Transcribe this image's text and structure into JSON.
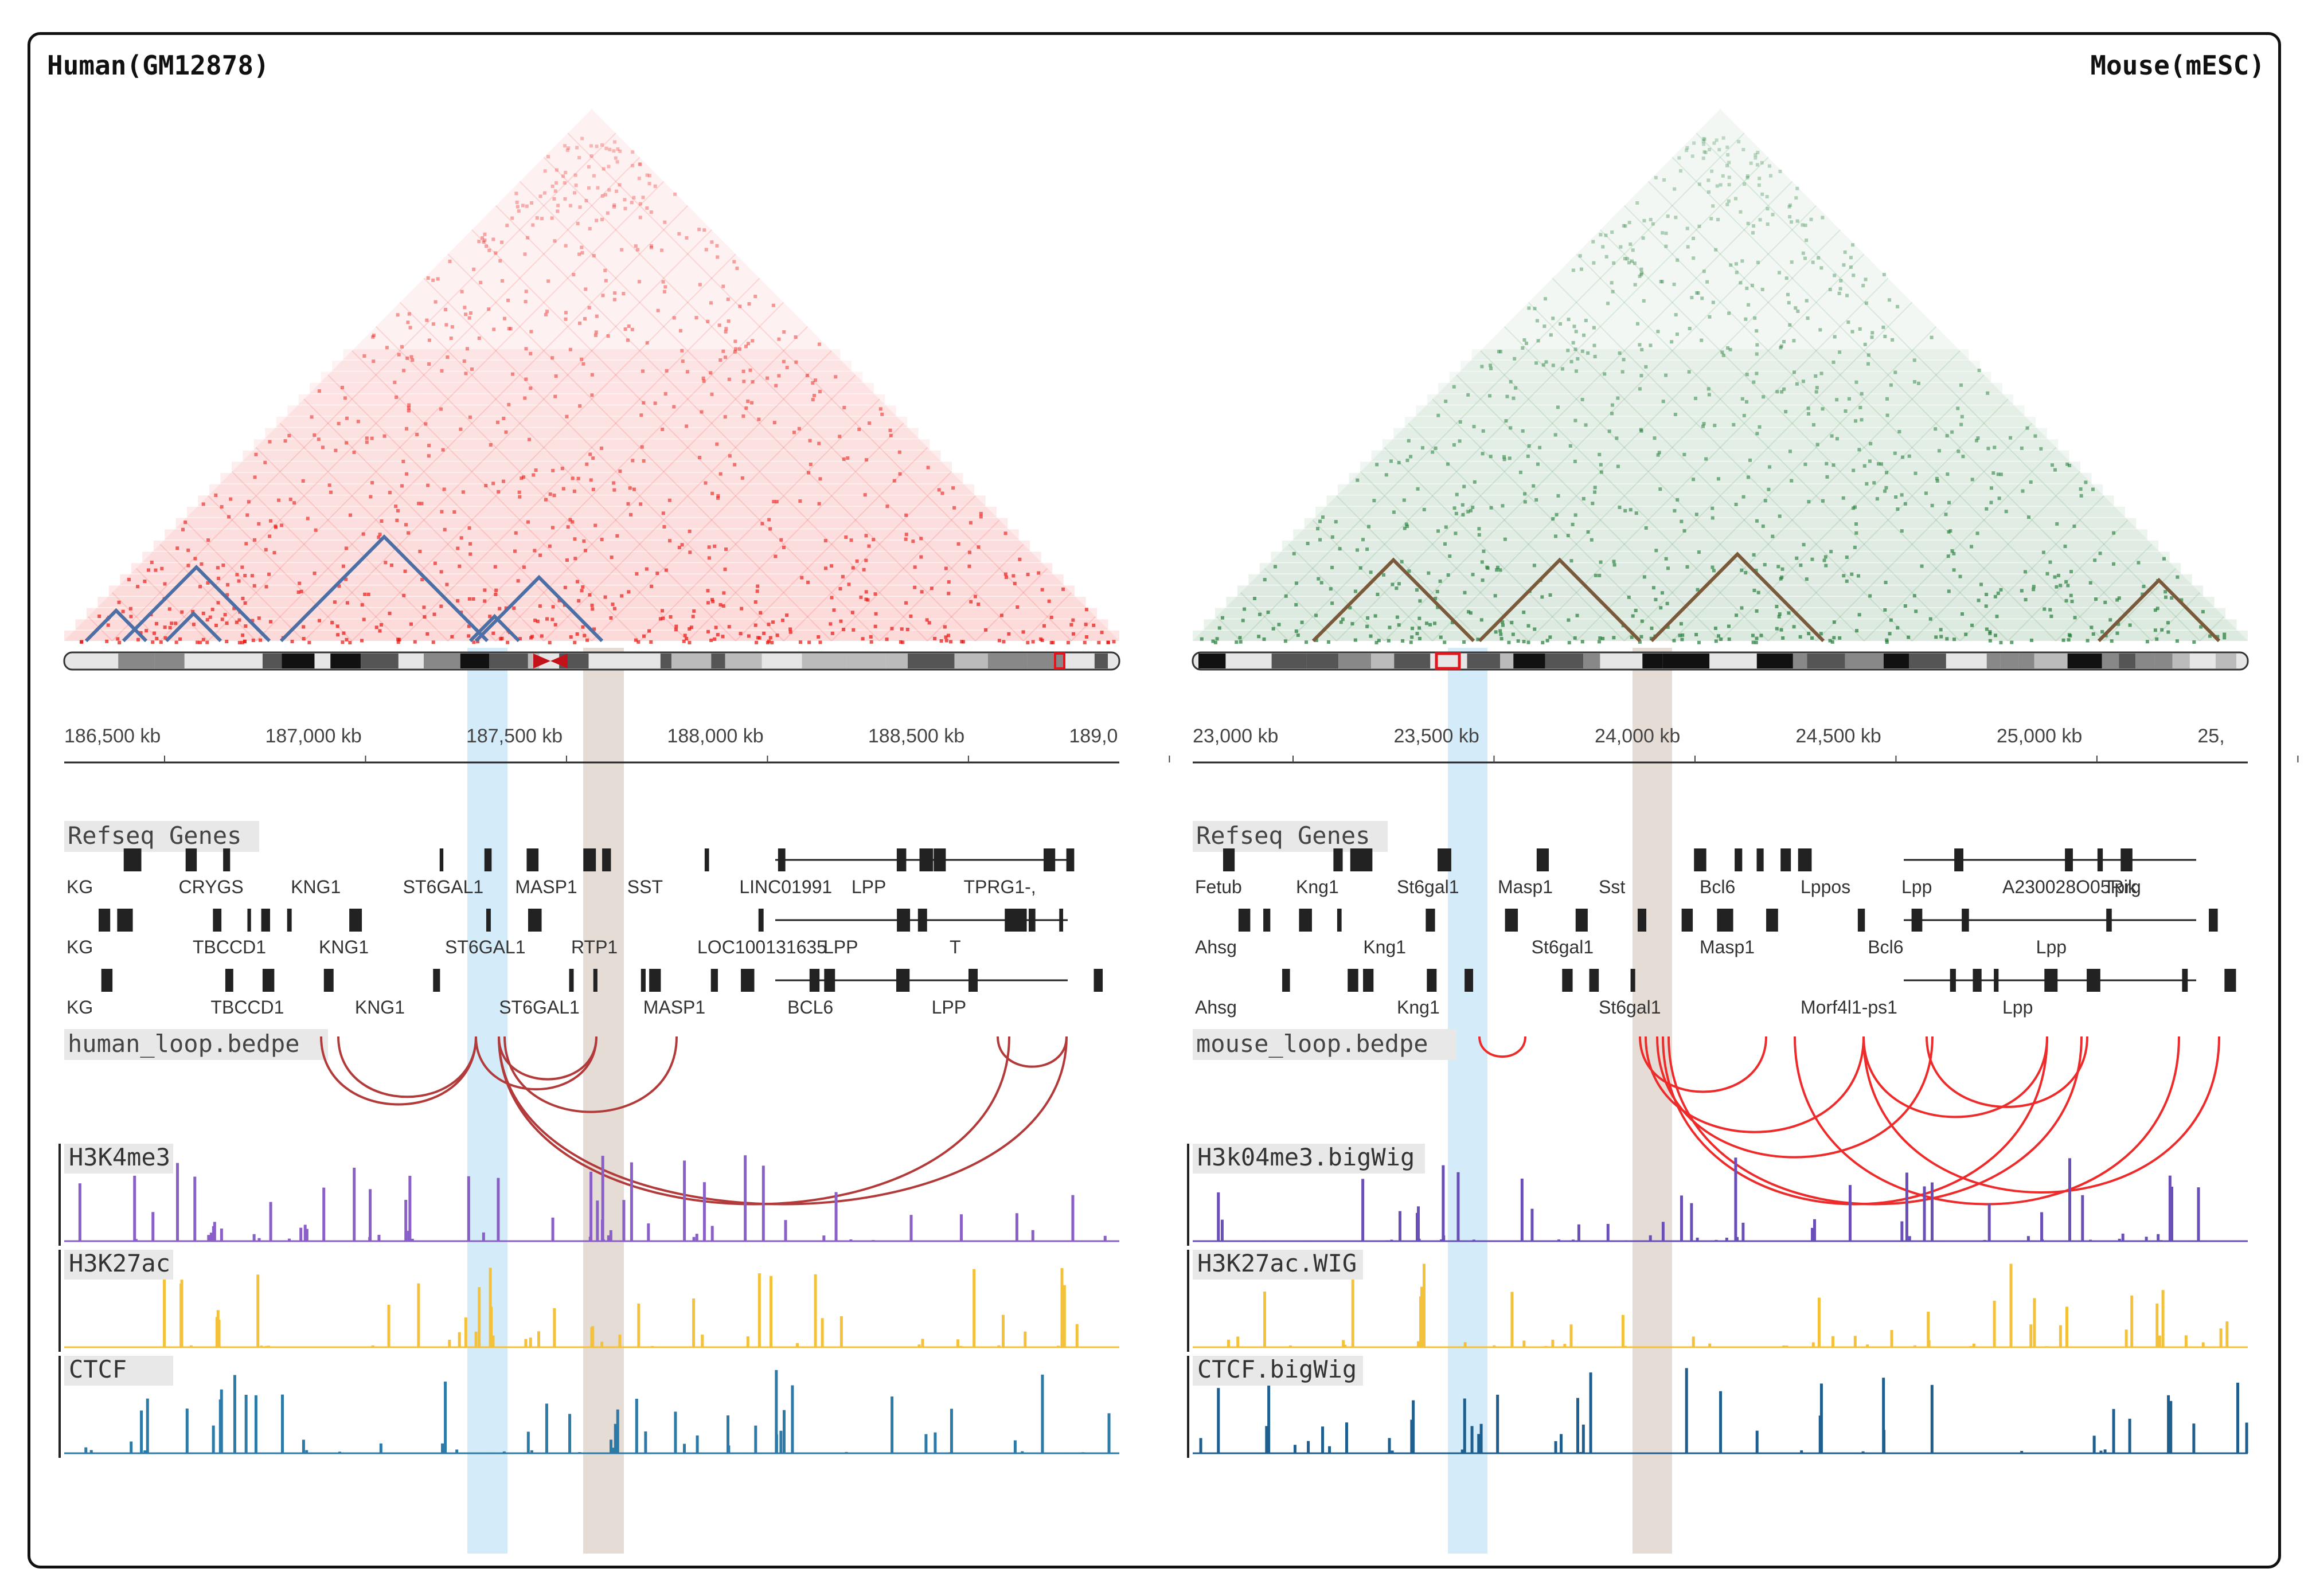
{
  "panels": [
    {
      "id": "human",
      "title": "Human(GM12878)",
      "title_align": "left",
      "heatmap_color": "#e8100c",
      "tad_color": "#4c6fa5",
      "loop_color": "#b23a3a",
      "axis_ticks": [
        "186,500 kb",
        "187,000 kb",
        "187,500 kb",
        "188,000 kb",
        "188,500 kb",
        "189,0"
      ],
      "genes_track_label": "Refseq Genes",
      "gene_rows": [
        [
          "KG",
          "CRYGS",
          "KNG1",
          "ST6GAL1",
          "MASP1",
          "SST",
          "LINC01991",
          "LPP",
          "TPRG1-,"
        ],
        [
          "KG",
          "TBCCD1",
          "KNG1",
          "ST6GAL1",
          "RTP1",
          "LOC100131635",
          "LPP",
          "T"
        ],
        [
          "KG",
          "TBCCD1",
          "KNG1",
          "ST6GAL1",
          "MASP1",
          "BCL6",
          "LPP"
        ]
      ],
      "loop_track_label": "human_loop.bedpe",
      "signal_tracks": [
        {
          "label": "H3K4me3",
          "color": "#8a5fc8"
        },
        {
          "label": "H3K27ac",
          "color": "#f3c13a"
        },
        {
          "label": "CTCF",
          "color": "#2b7aa8"
        }
      ]
    },
    {
      "id": "mouse",
      "title": "Mouse(mESC)",
      "title_align": "right",
      "heatmap_color": "#1f7a35",
      "tad_color": "#7a5a3a",
      "loop_color": "#ee2b2b",
      "axis_ticks": [
        "23,000 kb",
        "23,500 kb",
        "24,000 kb",
        "24,500 kb",
        "25,000 kb",
        "25,"
      ],
      "genes_track_label": "Refseq Genes",
      "gene_rows": [
        [
          "Fetub",
          "Kng1",
          "St6gal1",
          "Masp1",
          "Sst",
          "Bcl6",
          "Lppos",
          "Lpp",
          "A230028O05Rik",
          "Tprg"
        ],
        [
          "Ahsg",
          "Kng1",
          "St6gal1",
          "Masp1",
          "Bcl6",
          "Lpp"
        ],
        [
          "Ahsg",
          "Kng1",
          "St6gal1",
          "Morf4l1-ps1",
          "Lpp"
        ]
      ],
      "loop_track_label": "mouse_loop.bedpe",
      "signal_tracks": [
        {
          "label": "H3k04me3.bigWig",
          "color": "#6a4fb8"
        },
        {
          "label": "H3K27ac.WIG",
          "color": "#f3c13a"
        },
        {
          "label": "CTCF.bigWig",
          "color": "#1e5f8f"
        }
      ]
    }
  ],
  "highlight_colors": {
    "blue": "#cfe9f8",
    "brown": "#e2d8d2"
  }
}
